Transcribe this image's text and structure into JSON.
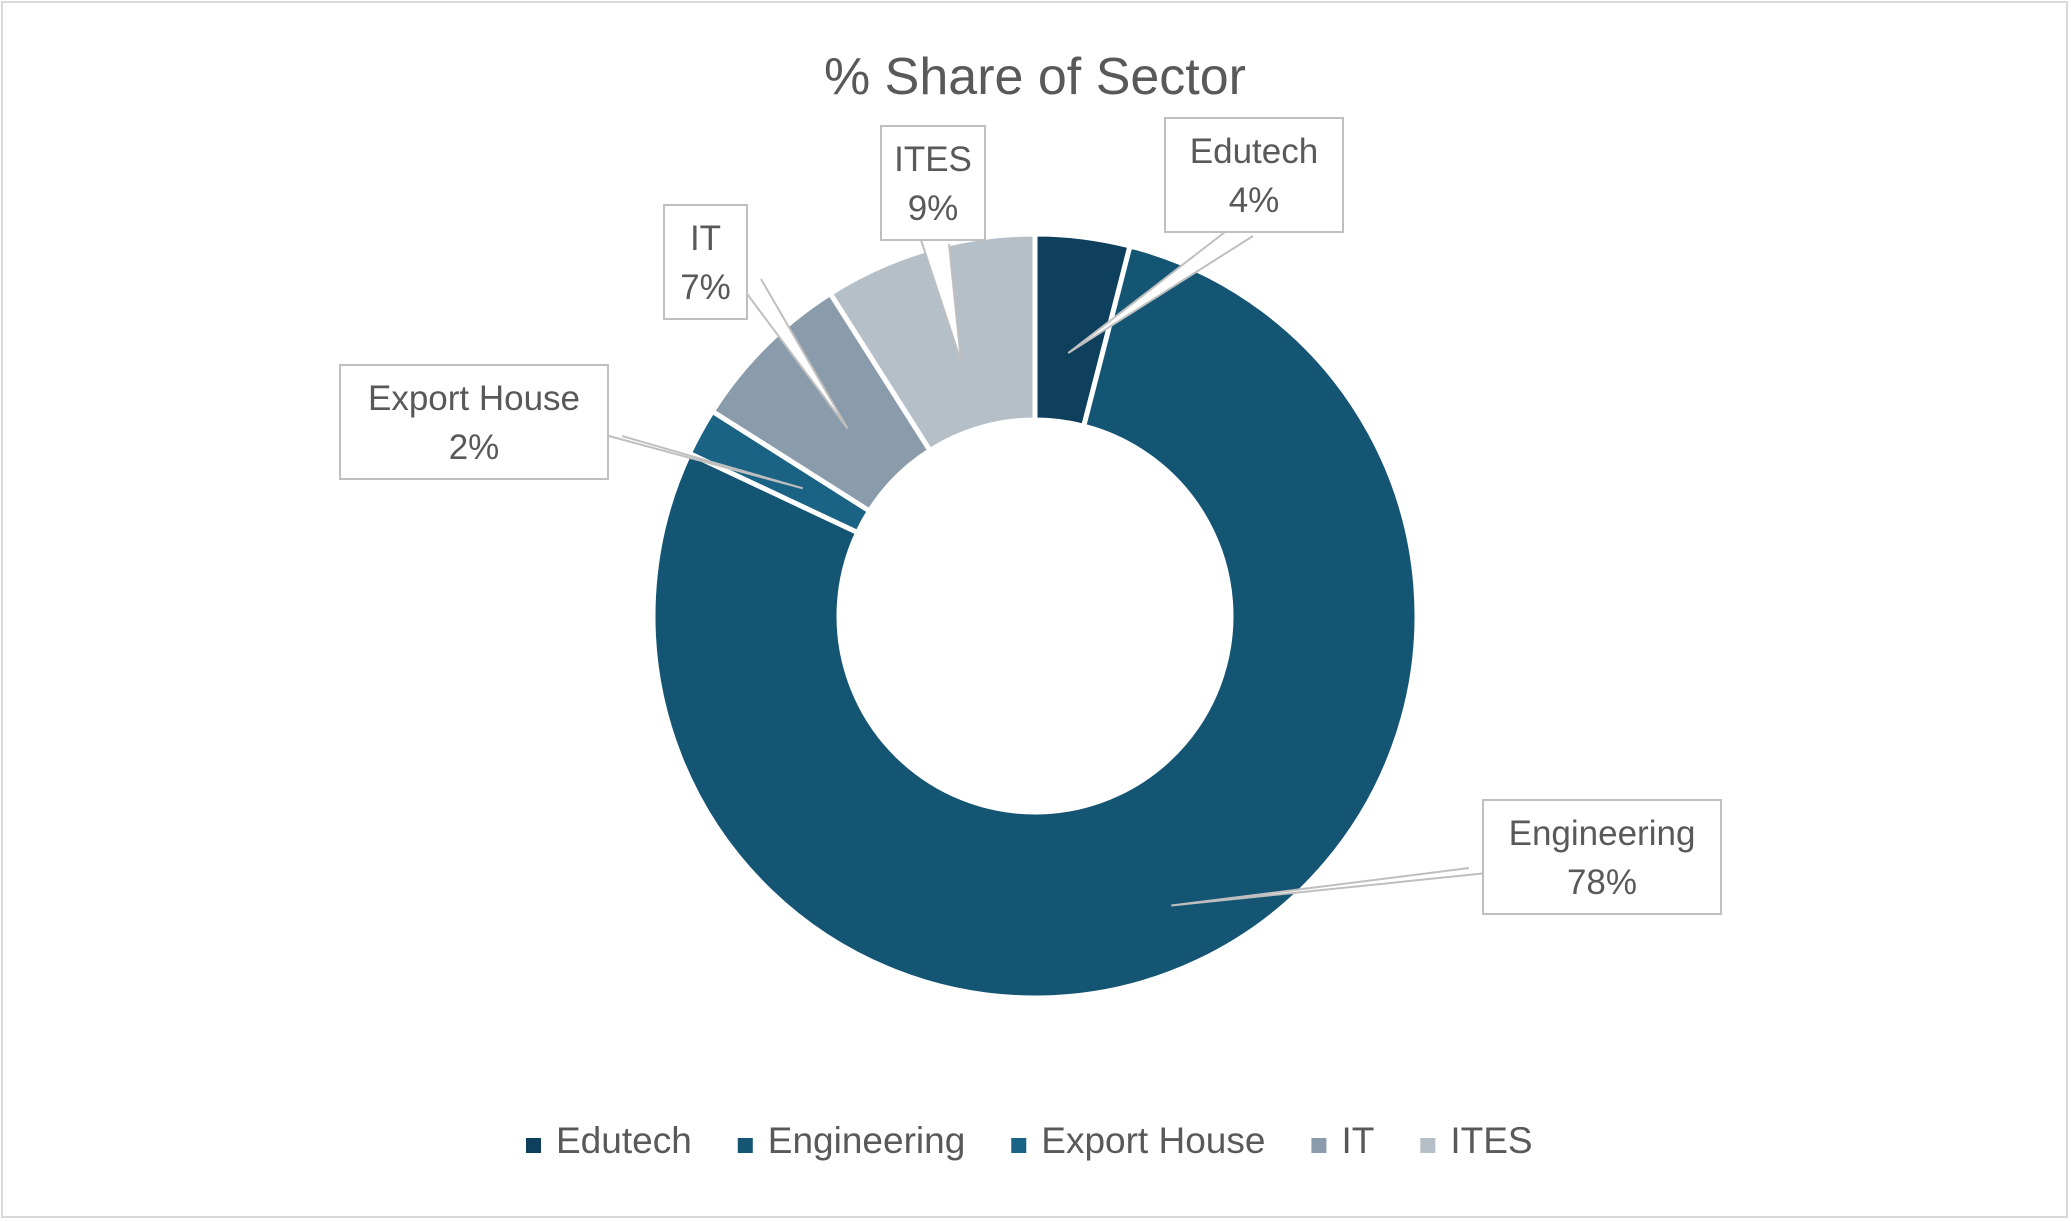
{
  "chart_data": {
    "type": "pie",
    "variant": "donut",
    "title": "% Share of Sector",
    "categories": [
      "Edutech",
      "Engineering",
      "Export House",
      "IT",
      "ITES"
    ],
    "values": [
      4,
      78,
      2,
      7,
      9
    ],
    "data_labels": [
      "4%",
      "78%",
      "2%",
      "7%",
      "9%"
    ],
    "colors": [
      "#0e3f5c",
      "#135573",
      "#1a6384",
      "#8a9bab",
      "#b5bfc8"
    ],
    "legend": "bottom"
  }
}
